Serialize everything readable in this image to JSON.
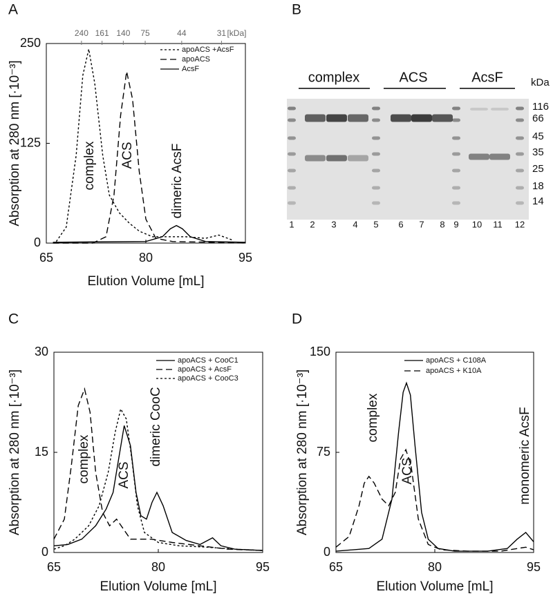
{
  "chart_data": [
    {
      "panel": "A",
      "type": "line",
      "y_label": "Absorption at 280 nm [·10⁻³]",
      "x_label": "Elution Volume [mL]",
      "xlim": [
        65,
        95
      ],
      "xticks": [
        65,
        80,
        95
      ],
      "ylim": [
        0,
        250
      ],
      "yticks": [
        0,
        125,
        250
      ],
      "legend": "upper right",
      "top_axis": {
        "unit": "[kDa]",
        "ticks": [
          {
            "value": 70.3,
            "label": "240"
          },
          {
            "value": 73.4,
            "label": "161"
          },
          {
            "value": 76.6,
            "label": "140"
          },
          {
            "value": 79.9,
            "label": "75"
          },
          {
            "value": 85.4,
            "label": "44"
          },
          {
            "value": 91.4,
            "label": "31"
          }
        ]
      },
      "series": [
        {
          "name": "apoACS +AcsF",
          "color": "#000000",
          "dash": "short",
          "x": [
            66.5,
            68,
            69.5,
            70.5,
            71.4,
            72.3,
            73.5,
            74.5,
            76,
            77.5,
            79,
            81,
            83,
            86,
            89,
            91,
            93
          ],
          "values": [
            2,
            20,
            110,
            210,
            243,
            200,
            110,
            60,
            38,
            25,
            15,
            8,
            8,
            8,
            6,
            10,
            4
          ]
        },
        {
          "name": "apoACS",
          "color": "#000000",
          "dash": "long",
          "x": [
            66,
            72,
            74,
            75.2,
            76.2,
            77.1,
            78,
            79,
            80,
            81.5,
            84,
            90,
            95
          ],
          "values": [
            0,
            0,
            8,
            60,
            160,
            215,
            180,
            90,
            30,
            6,
            2,
            1,
            0
          ]
        },
        {
          "name": "AcsF",
          "color": "#000000",
          "dash": "solid",
          "x": [
            66,
            80,
            82.5,
            83.7,
            84.6,
            85.5,
            86.7,
            89,
            95
          ],
          "values": [
            1,
            2,
            8,
            18,
            22,
            18,
            8,
            2,
            1
          ]
        }
      ],
      "annotations": [
        "complex",
        "ACS",
        "dimeric AcsF"
      ]
    },
    {
      "panel": "C",
      "type": "line",
      "y_label": "Absorption at 280 nm [·10⁻³]",
      "x_label": "Elution Volume [mL]",
      "xlim": [
        65,
        95
      ],
      "xticks": [
        65,
        80,
        95
      ],
      "ylim": [
        0,
        30
      ],
      "yticks": [
        0,
        15,
        30
      ],
      "legend": "upper right",
      "series": [
        {
          "name": "apoACS + CooC1",
          "color": "#000000",
          "dash": "solid",
          "x": [
            65,
            67,
            69,
            71,
            72.5,
            73.5,
            74.3,
            75.1,
            76,
            76.8,
            77.5,
            78.3,
            79.1,
            79.8,
            80.7,
            82,
            84,
            86,
            87.8,
            89,
            91,
            95
          ],
          "values": [
            1,
            1.2,
            2,
            4,
            6.5,
            9,
            14,
            19,
            16,
            9,
            5.5,
            5,
            7.5,
            9,
            7,
            3,
            1.8,
            1.2,
            2.2,
            1,
            0.5,
            0.3
          ]
        },
        {
          "name": "apoACS + AcsF",
          "color": "#000000",
          "dash": "long",
          "x": [
            65,
            66.5,
            67.5,
            68.5,
            69.4,
            70.2,
            71,
            72,
            73,
            74,
            75,
            76,
            77,
            79,
            82,
            86,
            90,
            95
          ],
          "values": [
            2,
            5,
            13,
            22,
            24.5,
            21,
            12,
            6,
            4,
            5,
            3.5,
            2,
            2,
            2,
            1.5,
            1,
            0.5,
            0.3
          ]
        },
        {
          "name": "apoACS + CooC3",
          "color": "#000000",
          "dash": "short",
          "x": [
            65,
            66.5,
            68,
            70,
            71.5,
            72.8,
            73.8,
            74.6,
            75.4,
            76.2,
            77,
            78,
            80,
            83,
            87,
            91,
            95
          ],
          "values": [
            0.5,
            1,
            2,
            4,
            7,
            12,
            18,
            21.5,
            20,
            14,
            7,
            3,
            1.5,
            1,
            0.8,
            0.5,
            0.3
          ]
        }
      ],
      "annotations": [
        "complex",
        "ACS",
        "dimeric CooC"
      ]
    },
    {
      "panel": "D",
      "type": "line",
      "y_label": "Absorption at 280 nm [·10⁻³]",
      "x_label": "Elution Volume [mL]",
      "xlim": [
        65,
        95
      ],
      "xticks": [
        65,
        80,
        95
      ],
      "ylim": [
        0,
        150
      ],
      "yticks": [
        0,
        75,
        150
      ],
      "legend": "upper right",
      "series": [
        {
          "name": "apoACS + C108A",
          "color": "#000000",
          "dash": "solid",
          "x": [
            65,
            70,
            72,
            73.5,
            74.5,
            75.2,
            75.7,
            76.3,
            77,
            78,
            79,
            80.5,
            83,
            88,
            91,
            92.5,
            93.8,
            95
          ],
          "values": [
            1,
            3,
            10,
            40,
            90,
            120,
            127,
            118,
            80,
            30,
            10,
            3,
            1,
            1,
            3,
            10,
            15,
            8
          ]
        },
        {
          "name": "apoACS + K10A",
          "color": "#000000",
          "dash": "long",
          "x": [
            65,
            67,
            68.5,
            69.3,
            70,
            70.8,
            72,
            73,
            74,
            74.8,
            75.6,
            76.4,
            77.5,
            79,
            81,
            85,
            90,
            93.8,
            95
          ],
          "values": [
            4,
            12,
            35,
            52,
            57,
            52,
            40,
            35,
            45,
            70,
            77,
            65,
            25,
            6,
            2,
            1,
            1,
            4,
            2
          ]
        }
      ],
      "annotations": [
        "complex",
        "ACS",
        "monomeric AcsF"
      ]
    }
  ],
  "gel": {
    "panel": "B",
    "groups": [
      "complex",
      "ACS",
      "AcsF"
    ],
    "unit": "kDa",
    "markers": [
      116,
      66,
      45,
      35,
      25,
      18,
      14
    ],
    "lanes": [
      1,
      2,
      3,
      4,
      5,
      6,
      7,
      8,
      9,
      10,
      11,
      12
    ]
  }
}
